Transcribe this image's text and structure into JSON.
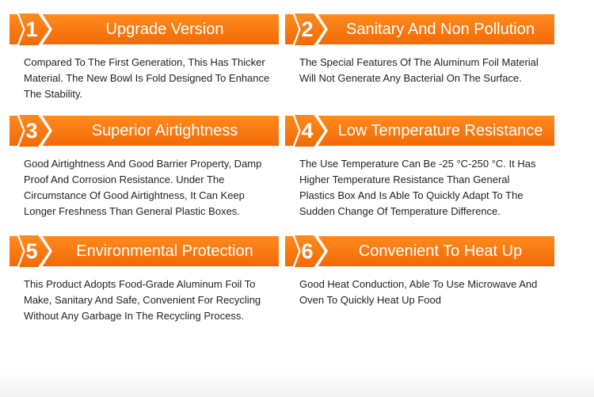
{
  "colors": {
    "accent": "#f47a10",
    "text": "#222222"
  },
  "features": [
    {
      "number": "1",
      "title": "Upgrade Version",
      "description": "Compared To The First Generation, This Has Thicker Material. The New Bowl Is Fold Designed To Enhance The Stability."
    },
    {
      "number": "2",
      "title": "Sanitary And Non Pollution",
      "description": "The Special Features Of The Aluminum Foil Material Will Not Generate Any Bacterial On The Surface."
    },
    {
      "number": "3",
      "title": "Superior Airtightness",
      "description": "Good Airtightness And Good Barrier Property, Damp Proof And Corrosion Resistance. Under The Circumstance Of Good Airtightness, It Can Keep Longer Freshness Than General Plastic Boxes."
    },
    {
      "number": "4",
      "title": "Low Temperature Resistance",
      "description": "The Use Temperature Can Be -25 °C-250 °C. It Has Higher Temperature Resistance Than General Plastics Box And Is Able To Quickly Adapt To The Sudden Change Of Temperature Difference."
    },
    {
      "number": "5",
      "title": "Environmental Protection",
      "description": "This Product Adopts Food-Grade Aluminum Foil To Make, Sanitary And Safe, Convenient For Recycling Without Any Garbage In The Recycling Process."
    },
    {
      "number": "6",
      "title": "Convenient To Heat Up",
      "description": "Good Heat Conduction, Able To Use Microwave And Oven To Quickly Heat Up Food"
    }
  ]
}
